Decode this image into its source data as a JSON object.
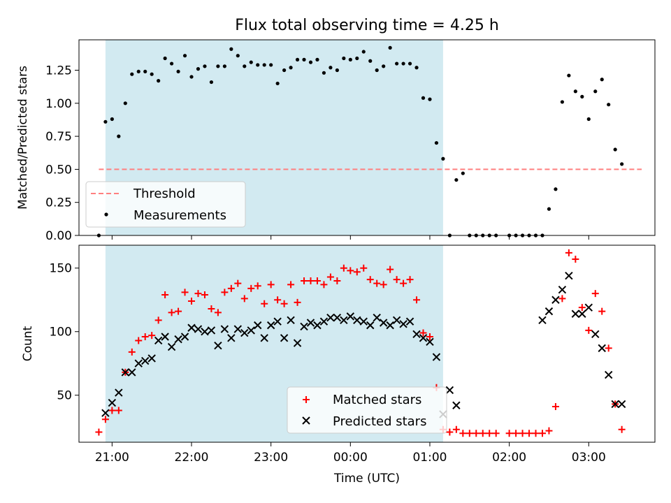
{
  "figure": {
    "title": "Flux total observing time = 4.25 h"
  },
  "colors": {
    "shade": "#add8e6",
    "threshold": "#ff7f7f",
    "measurement": "#000000",
    "matched": "#ff0000",
    "predicted": "#000000"
  },
  "chart_data": [
    {
      "type": "scatter",
      "panel": "top",
      "ylabel": "Matched/Predicted stars",
      "xlabel": "",
      "xlim": [
        "20:35",
        "03:50"
      ],
      "ylim": [
        0,
        1.48
      ],
      "yticks": [
        "0.00",
        "0.25",
        "0.50",
        "0.75",
        "1.00",
        "1.25"
      ],
      "xticks": [
        "21:00",
        "22:00",
        "23:00",
        "00:00",
        "01:00",
        "02:00",
        "03:00"
      ],
      "shaded_interval": [
        "20:55",
        "01:10"
      ],
      "legend_position": "lower left",
      "legend": [
        {
          "label": "Threshold",
          "style": "dashed-line"
        },
        {
          "label": "Measurements",
          "style": "dot"
        }
      ],
      "threshold": {
        "name": "Threshold",
        "value": 0.5,
        "x_range": [
          "20:50",
          "03:40"
        ]
      },
      "series": [
        {
          "name": "Measurements",
          "x": [
            "20:50",
            "20:55",
            "21:00",
            "21:05",
            "21:10",
            "21:15",
            "21:20",
            "21:25",
            "21:30",
            "21:35",
            "21:40",
            "21:45",
            "21:50",
            "21:55",
            "22:00",
            "22:05",
            "22:10",
            "22:15",
            "22:20",
            "22:25",
            "22:30",
            "22:35",
            "22:40",
            "22:45",
            "22:50",
            "22:55",
            "23:00",
            "23:05",
            "23:10",
            "23:15",
            "23:20",
            "23:25",
            "23:30",
            "23:35",
            "23:40",
            "23:45",
            "23:50",
            "23:55",
            "00:00",
            "00:05",
            "00:10",
            "00:15",
            "00:20",
            "00:25",
            "00:30",
            "00:35",
            "00:40",
            "00:45",
            "00:50",
            "00:55",
            "01:00",
            "01:05",
            "01:10",
            "01:15",
            "01:20",
            "01:25",
            "01:30",
            "01:35",
            "01:40",
            "01:45",
            "01:50",
            "02:00",
            "02:05",
            "02:10",
            "02:15",
            "02:20",
            "02:25",
            "02:30",
            "02:35",
            "02:40",
            "02:45",
            "02:50",
            "02:55",
            "03:00",
            "03:05",
            "03:10",
            "03:15",
            "03:20",
            "03:25"
          ],
          "y": [
            0.0,
            0.86,
            0.88,
            0.75,
            1.0,
            1.22,
            1.24,
            1.24,
            1.22,
            1.17,
            1.34,
            1.3,
            1.24,
            1.36,
            1.2,
            1.26,
            1.28,
            1.16,
            1.28,
            1.28,
            1.41,
            1.36,
            1.28,
            1.31,
            1.29,
            1.29,
            1.29,
            1.15,
            1.25,
            1.27,
            1.33,
            1.33,
            1.31,
            1.33,
            1.23,
            1.27,
            1.25,
            1.34,
            1.33,
            1.34,
            1.39,
            1.32,
            1.25,
            1.28,
            1.42,
            1.3,
            1.3,
            1.3,
            1.27,
            1.04,
            1.03,
            0.7,
            0.58,
            0.0,
            0.42,
            0.47,
            0.0,
            0.0,
            0.0,
            0.0,
            0.0,
            0.0,
            0.0,
            0.0,
            0.0,
            0.0,
            0.0,
            0.2,
            0.35,
            1.01,
            1.21,
            1.09,
            1.05,
            0.88,
            1.09,
            1.18,
            0.99,
            0.65,
            0.54
          ]
        }
      ]
    },
    {
      "type": "scatter",
      "panel": "bottom",
      "ylabel": "Count",
      "xlabel": "Time (UTC)",
      "xlim": [
        "20:35",
        "03:50"
      ],
      "ylim": [
        13,
        168
      ],
      "yticks": [
        "50",
        "100",
        "150"
      ],
      "xticks": [
        "21:00",
        "22:00",
        "23:00",
        "00:00",
        "01:00",
        "02:00",
        "03:00"
      ],
      "shaded_interval": [
        "20:55",
        "01:10"
      ],
      "legend_position": "lower center",
      "legend": [
        {
          "label": "Matched stars",
          "style": "plus"
        },
        {
          "label": "Predicted stars",
          "style": "cross"
        }
      ],
      "series": [
        {
          "name": "Matched stars",
          "marker": "plus",
          "x": [
            "20:50",
            "20:55",
            "21:00",
            "21:05",
            "21:10",
            "21:15",
            "21:20",
            "21:25",
            "21:30",
            "21:35",
            "21:40",
            "21:45",
            "21:50",
            "21:55",
            "22:00",
            "22:05",
            "22:10",
            "22:15",
            "22:20",
            "22:25",
            "22:30",
            "22:35",
            "22:40",
            "22:45",
            "22:50",
            "22:55",
            "23:00",
            "23:05",
            "23:10",
            "23:15",
            "23:20",
            "23:25",
            "23:30",
            "23:35",
            "23:40",
            "23:45",
            "23:50",
            "23:55",
            "00:00",
            "00:05",
            "00:10",
            "00:15",
            "00:20",
            "00:25",
            "00:30",
            "00:35",
            "00:40",
            "00:45",
            "00:50",
            "00:55",
            "01:00",
            "01:05",
            "01:10",
            "01:15",
            "01:20",
            "01:25",
            "01:30",
            "01:35",
            "01:40",
            "01:45",
            "01:50",
            "02:00",
            "02:05",
            "02:10",
            "02:15",
            "02:20",
            "02:25",
            "02:30",
            "02:35",
            "02:40",
            "02:45",
            "02:50",
            "02:55",
            "03:00",
            "03:05",
            "03:10",
            "03:15",
            "03:20",
            "03:25"
          ],
          "y": [
            21,
            31,
            38,
            38,
            68,
            84,
            93,
            96,
            97,
            109,
            129,
            115,
            116,
            131,
            124,
            130,
            129,
            118,
            115,
            131,
            134,
            138,
            126,
            134,
            136,
            122,
            137,
            125,
            122,
            137,
            123,
            140,
            140,
            140,
            137,
            143,
            140,
            150,
            148,
            147,
            150,
            141,
            138,
            137,
            149,
            141,
            138,
            141,
            125,
            99,
            96,
            56,
            23,
            21,
            23,
            20,
            20,
            20,
            20,
            20,
            20,
            20,
            20,
            20,
            20,
            20,
            20,
            22,
            41,
            126,
            162,
            157,
            119,
            101,
            130,
            116,
            87,
            43,
            23
          ]
        },
        {
          "name": "Predicted stars",
          "marker": "cross",
          "x": [
            "20:55",
            "21:00",
            "21:05",
            "21:10",
            "21:15",
            "21:20",
            "21:25",
            "21:30",
            "21:35",
            "21:40",
            "21:45",
            "21:50",
            "21:55",
            "22:00",
            "22:05",
            "22:10",
            "22:15",
            "22:20",
            "22:25",
            "22:30",
            "22:35",
            "22:40",
            "22:45",
            "22:50",
            "22:55",
            "23:00",
            "23:05",
            "23:10",
            "23:15",
            "23:20",
            "23:25",
            "23:30",
            "23:35",
            "23:40",
            "23:45",
            "23:50",
            "23:55",
            "00:00",
            "00:05",
            "00:10",
            "00:15",
            "00:20",
            "00:25",
            "00:30",
            "00:35",
            "00:40",
            "00:45",
            "00:50",
            "00:55",
            "01:00",
            "01:05",
            "01:10",
            "01:15",
            "01:20",
            "02:25",
            "02:30",
            "02:35",
            "02:40",
            "02:45",
            "02:50",
            "02:55",
            "03:00",
            "03:05",
            "03:10",
            "03:15",
            "03:20",
            "03:25"
          ],
          "y": [
            36,
            44,
            52,
            68,
            68,
            75,
            77,
            79,
            93,
            96,
            88,
            94,
            96,
            103,
            102,
            100,
            101,
            89,
            102,
            95,
            102,
            99,
            101,
            105,
            95,
            105,
            108,
            95,
            109,
            91,
            104,
            107,
            105,
            108,
            111,
            111,
            109,
            112,
            109,
            108,
            105,
            111,
            107,
            105,
            109,
            106,
            108,
            98,
            95,
            92,
            80,
            35,
            54,
            42,
            109,
            116,
            125,
            133,
            144,
            114,
            114,
            119,
            98,
            87,
            66,
            43,
            43
          ]
        }
      ]
    }
  ]
}
